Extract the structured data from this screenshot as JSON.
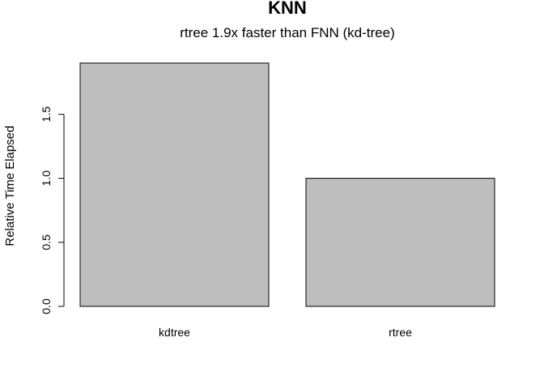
{
  "chart_data": {
    "type": "bar",
    "title": "KNN",
    "subtitle": "rtree 1.9x faster than FNN (kd-tree)",
    "xlabel": "",
    "ylabel": "Relative Time Elapsed",
    "categories": [
      "kdtree",
      "rtree"
    ],
    "values": [
      1.9,
      1.0
    ],
    "ylim": [
      0,
      1.9
    ],
    "yticks": [
      0.0,
      0.5,
      1.0,
      1.5
    ],
    "ytick_labels": [
      "0.0",
      "0.5",
      "1.0",
      "1.5"
    ],
    "grid": false,
    "legend": "none",
    "bar_color": "#bebebe",
    "bar_border_color": "#000000"
  }
}
